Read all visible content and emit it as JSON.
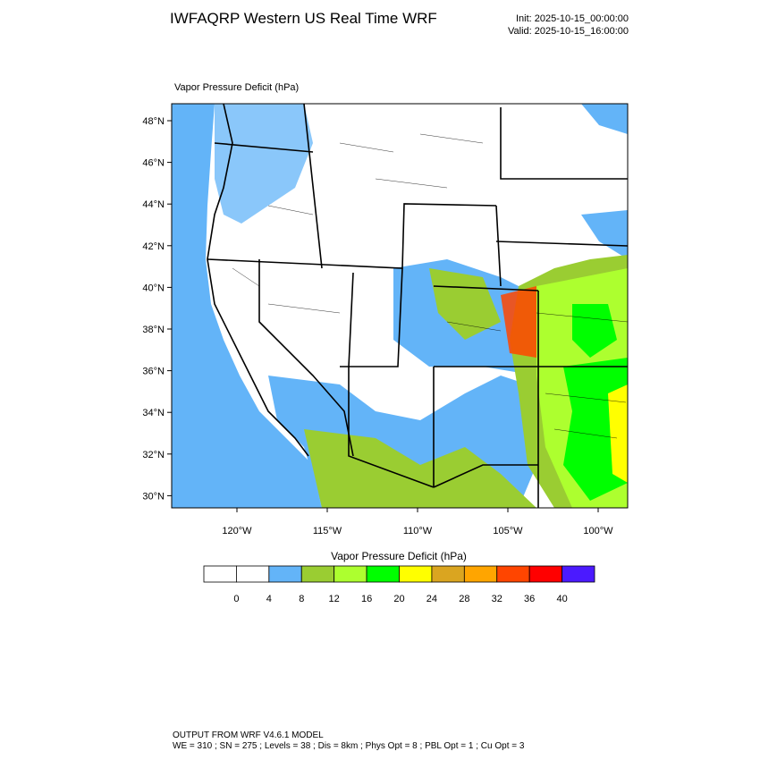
{
  "header": {
    "title": "IWFAQRP Western US Real Time WRF",
    "init": "Init: 2025-10-15_00:00:00",
    "valid": "Valid: 2025-10-15_16:00:00"
  },
  "plot": {
    "subtitle": "Vapor Pressure Deficit   (hPa)",
    "lat_labels": [
      "48°N",
      "46°N",
      "44°N",
      "42°N",
      "40°N",
      "38°N",
      "36°N",
      "34°N",
      "32°N",
      "30°N"
    ],
    "lon_labels": [
      "120°W",
      "115°W",
      "110°W",
      "105°W",
      "100°W"
    ]
  },
  "colorbar": {
    "title": "Vapor Pressure Deficit  (hPa)",
    "colors": [
      "#ffffff",
      "#ffffff",
      "#63b4f8",
      "#9acd32",
      "#adff2f",
      "#00ff00",
      "#ffff00",
      "#daa520",
      "#ffa500",
      "#ff4500",
      "#ff0000",
      "#4b1aff"
    ],
    "levels": [
      0,
      4,
      8,
      12,
      16,
      20,
      24,
      28,
      32,
      36,
      40
    ]
  },
  "footer": {
    "line1": "OUTPUT FROM WRF V4.6.1 MODEL",
    "line2": "WE = 310 ; SN = 275 ; Levels = 38 ; Dis = 8km ; Phys Opt = 8 ; PBL Opt = 1 ; Cu Opt = 3"
  }
}
